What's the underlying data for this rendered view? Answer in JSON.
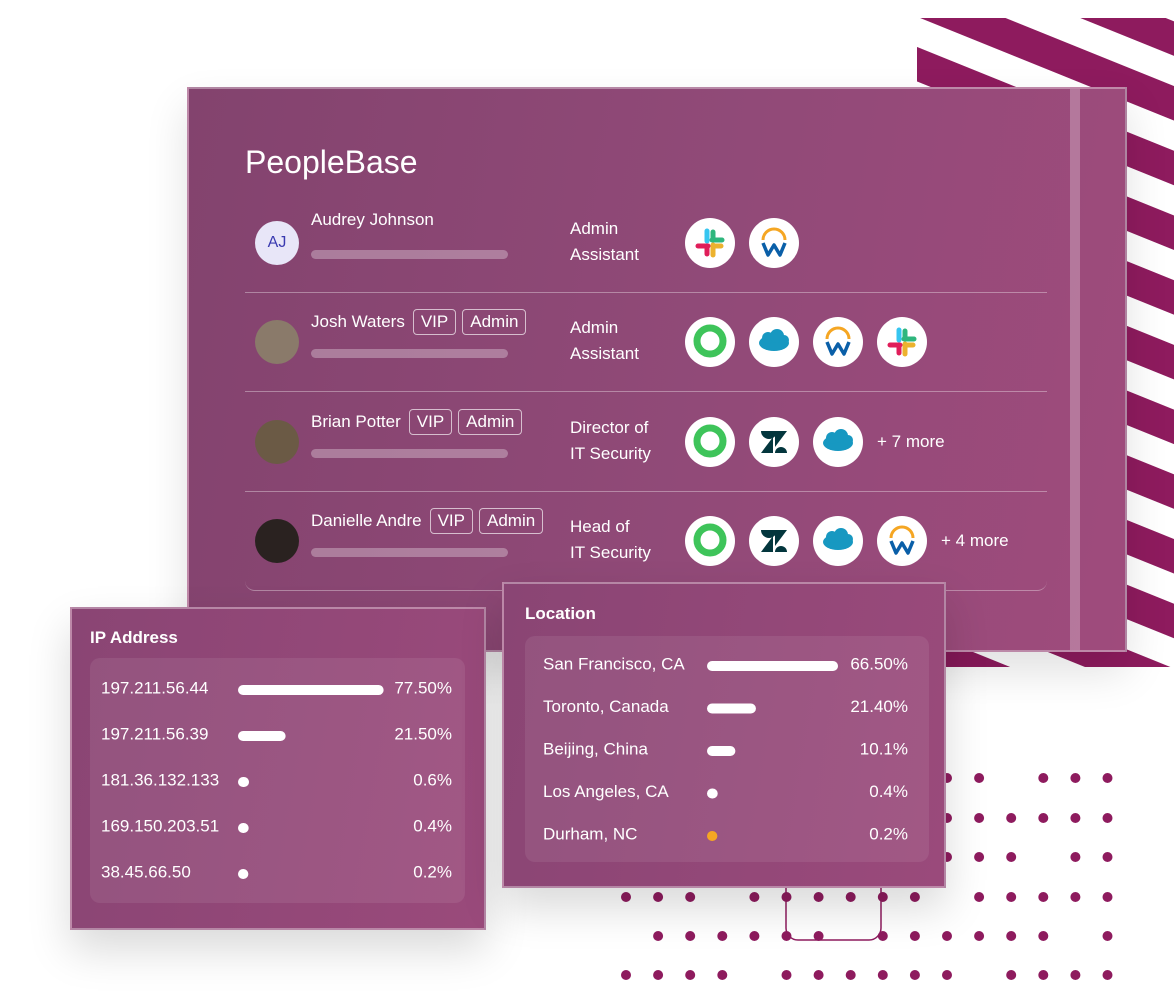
{
  "title": "PeopleBase",
  "people": [
    {
      "initials": "AJ",
      "name": "Audrey Johnson",
      "role": [
        "Admin",
        "Assistant"
      ]
    },
    {
      "name": "Josh Waters",
      "tags": [
        "VIP",
        "Admin"
      ],
      "role": [
        "Admin",
        "Assistant"
      ]
    },
    {
      "name": "Brian Potter",
      "tags": [
        "VIP",
        "Admin"
      ],
      "role": [
        "Director of",
        "IT Security"
      ],
      "more": "+ 7 more"
    },
    {
      "name": "Danielle Andre",
      "tags": [
        "VIP",
        "Admin"
      ],
      "role": [
        "Head of",
        "IT Security"
      ],
      "more": "+ 4 more"
    }
  ],
  "ip_address": {
    "title": "IP Address",
    "bar_color": "#ffffff",
    "items": [
      {
        "label": "197.211.56.44",
        "value": 77.5,
        "value_label": "77.50%"
      },
      {
        "label": "197.211.56.39",
        "value": 21.5,
        "value_label": "21.50%"
      },
      {
        "label": "181.36.132.133",
        "value": 0.6,
        "value_label": "0.6%"
      },
      {
        "label": "169.150.203.51",
        "value": 0.4,
        "value_label": "0.4%"
      },
      {
        "label": "38.45.66.50",
        "value": 0.2,
        "value_label": "0.2%"
      }
    ]
  },
  "location": {
    "title": "Location",
    "bar_color": "#ffffff",
    "items": [
      {
        "label": "San Francisco, CA",
        "value": 66.5,
        "value_label": "66.50%"
      },
      {
        "label": "Toronto, Canada",
        "value": 21.4,
        "value_label": "21.40%"
      },
      {
        "label": "Beijing, China",
        "value": 10.1,
        "value_label": "10.1%"
      },
      {
        "label": "Los Angeles, CA",
        "value": 0.4,
        "value_label": "0.4%"
      },
      {
        "label": "Durham, NC",
        "value": 0.2,
        "value_label": "0.2%",
        "color": "#f5a623"
      }
    ]
  }
}
